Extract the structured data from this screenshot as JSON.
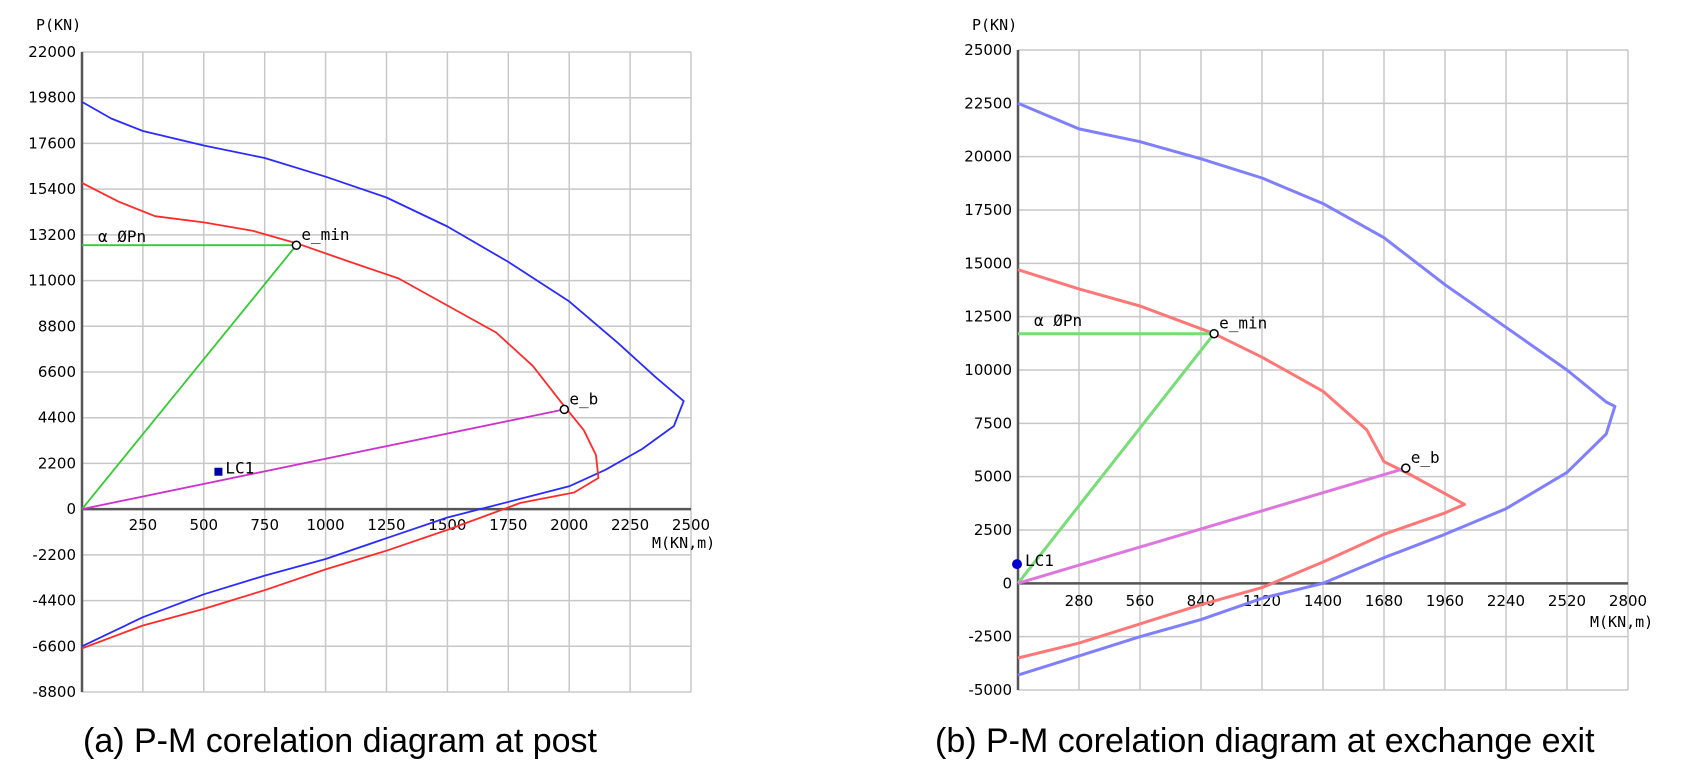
{
  "chart_data": [
    {
      "type": "line",
      "caption": "(a) P-M corelation diagram at post",
      "ylabel": "P(KN)",
      "xlabel": "M(KN,m)",
      "x_ticks": [
        250,
        500,
        750,
        1000,
        1250,
        1500,
        1750,
        2000,
        2250,
        2500
      ],
      "x_tick_labels": [
        "250",
        "500",
        "750",
        "1000",
        "1250",
        "1500",
        "1750",
        "2000",
        "2250",
        "2500"
      ],
      "y_ticks": [
        22000,
        19800,
        17600,
        15400,
        13200,
        11000,
        8800,
        6600,
        4400,
        2200,
        0,
        -2200,
        -4400,
        -6600,
        -8800
      ],
      "y_tick_labels": [
        "22000",
        "19800",
        "17600",
        "15400",
        "13200",
        "11000",
        "8800",
        "6600",
        "4400",
        "2200",
        "0",
        "-2200",
        "-4400",
        "-6600",
        "-8800"
      ],
      "xlim": [
        0,
        2500
      ],
      "ylim": [
        -8800,
        22000
      ],
      "grid": true,
      "colors": {
        "nominal": "#2b2bff",
        "design": "#ff2b2b",
        "green": "#33cc33",
        "magenta": "#cc33cc",
        "lc": "#0000aa"
      },
      "series": [
        {
          "role": "nominal",
          "points": [
            [
              0,
              19600
            ],
            [
              120,
              18800
            ],
            [
              250,
              18200
            ],
            [
              500,
              17500
            ],
            [
              750,
              16900
            ],
            [
              1000,
              16000
            ],
            [
              1250,
              15000
            ],
            [
              1500,
              13600
            ],
            [
              1750,
              11900
            ],
            [
              2000,
              10000
            ],
            [
              2200,
              8000
            ],
            [
              2350,
              6400
            ],
            [
              2470,
              5200
            ],
            [
              2430,
              4000
            ],
            [
              2300,
              2900
            ],
            [
              2150,
              1900
            ],
            [
              2000,
              1100
            ],
            [
              1800,
              500
            ],
            [
              1500,
              -400
            ],
            [
              1250,
              -1400
            ],
            [
              1000,
              -2400
            ],
            [
              750,
              -3200
            ],
            [
              500,
              -4100
            ],
            [
              250,
              -5200
            ],
            [
              0,
              -6600
            ]
          ]
        },
        {
          "role": "design",
          "points": [
            [
              0,
              15700
            ],
            [
              150,
              14800
            ],
            [
              300,
              14100
            ],
            [
              500,
              13800
            ],
            [
              700,
              13400
            ],
            [
              880,
              12800
            ],
            [
              1100,
              11900
            ],
            [
              1300,
              11100
            ],
            [
              1500,
              9800
            ],
            [
              1700,
              8500
            ],
            [
              1850,
              6900
            ],
            [
              1970,
              5100
            ],
            [
              2060,
              3800
            ],
            [
              2110,
              2600
            ],
            [
              2120,
              1500
            ],
            [
              2020,
              800
            ],
            [
              1800,
              300
            ],
            [
              1500,
              -1000
            ],
            [
              1250,
              -2000
            ],
            [
              1000,
              -2900
            ],
            [
              750,
              -3900
            ],
            [
              500,
              -4800
            ],
            [
              250,
              -5600
            ],
            [
              0,
              -6700
            ]
          ]
        },
        {
          "role": "green",
          "points": [
            [
              0,
              12700
            ],
            [
              880,
              12700
            ],
            [
              0,
              0
            ]
          ]
        },
        {
          "role": "magenta",
          "points": [
            [
              0,
              0
            ],
            [
              1980,
              4800
            ]
          ]
        }
      ],
      "markers": [
        {
          "label": "e_min",
          "x": 880,
          "y": 12700
        },
        {
          "label": "e_b",
          "x": 1980,
          "y": 4800
        }
      ],
      "load_case": {
        "label": "LC1",
        "x": 560,
        "y": 1800
      },
      "phi_label": "α ØPn"
    },
    {
      "type": "line",
      "caption": "(b) P-M corelation diagram at exchange exit",
      "ylabel": "P(KN)",
      "xlabel": "M(KN,m)",
      "x_ticks": [
        280,
        560,
        840,
        1120,
        1400,
        1680,
        1960,
        2240,
        2520,
        2800
      ],
      "x_tick_labels": [
        "280",
        "560",
        "840",
        "1120",
        "1400",
        "1680",
        "1960",
        "2240",
        "2520",
        "2800"
      ],
      "y_ticks": [
        25000,
        22500,
        20000,
        17500,
        15000,
        12500,
        10000,
        7500,
        5000,
        2500,
        0,
        -2500,
        -5000
      ],
      "y_tick_labels": [
        "25000",
        "22500",
        "20000",
        "17500",
        "15000",
        "12500",
        "10000",
        "7500",
        "5000",
        "2500",
        "0",
        "-2500",
        "-5000"
      ],
      "xlim": [
        0,
        2800
      ],
      "ylim": [
        -5000,
        25000
      ],
      "grid": true,
      "colors": {
        "nominal": "#7f7fff",
        "design": "#ff7777",
        "green": "#77dd77",
        "magenta": "#dd77dd",
        "lc": "#0000cc"
      },
      "series": [
        {
          "role": "nominal",
          "points": [
            [
              0,
              22500
            ],
            [
              280,
              21300
            ],
            [
              560,
              20700
            ],
            [
              840,
              19900
            ],
            [
              1120,
              19000
            ],
            [
              1400,
              17800
            ],
            [
              1680,
              16200
            ],
            [
              1960,
              14000
            ],
            [
              2240,
              12000
            ],
            [
              2520,
              10000
            ],
            [
              2700,
              8500
            ],
            [
              2740,
              8300
            ],
            [
              2700,
              7000
            ],
            [
              2520,
              5200
            ],
            [
              2240,
              3500
            ],
            [
              1960,
              2300
            ],
            [
              1680,
              1200
            ],
            [
              1400,
              0
            ],
            [
              1120,
              -700
            ],
            [
              840,
              -1700
            ],
            [
              560,
              -2500
            ],
            [
              280,
              -3400
            ],
            [
              0,
              -4300
            ]
          ]
        },
        {
          "role": "design",
          "points": [
            [
              0,
              14700
            ],
            [
              280,
              13800
            ],
            [
              560,
              13000
            ],
            [
              900,
              11700
            ],
            [
              1120,
              10600
            ],
            [
              1400,
              9000
            ],
            [
              1600,
              7200
            ],
            [
              1680,
              5700
            ],
            [
              1800,
              5100
            ],
            [
              2050,
              3700
            ],
            [
              1960,
              3300
            ],
            [
              1680,
              2300
            ],
            [
              1400,
              1000
            ],
            [
              1120,
              -200
            ],
            [
              840,
              -1000
            ],
            [
              560,
              -1900
            ],
            [
              280,
              -2800
            ],
            [
              0,
              -3500
            ]
          ]
        },
        {
          "role": "green",
          "points": [
            [
              0,
              11700
            ],
            [
              900,
              11700
            ],
            [
              0,
              0
            ]
          ]
        },
        {
          "role": "magenta",
          "points": [
            [
              0,
              0
            ],
            [
              1780,
              5400
            ]
          ]
        }
      ],
      "markers": [
        {
          "label": "e_min",
          "x": 900,
          "y": 11700
        },
        {
          "label": "e_b",
          "x": 1780,
          "y": 5400
        }
      ],
      "load_case": {
        "label": "LC1",
        "x": 0,
        "y": 900
      },
      "phi_label": "α ØPn"
    }
  ]
}
